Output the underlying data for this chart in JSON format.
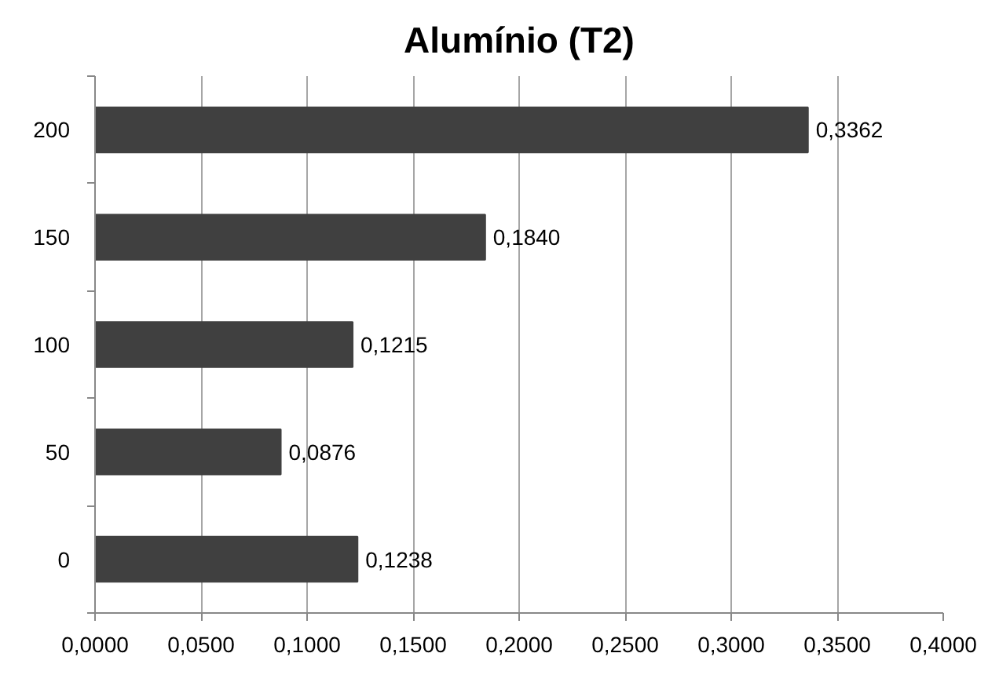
{
  "chart_data": {
    "type": "bar",
    "orientation": "horizontal",
    "title": "Alumínio (T2)",
    "categories": [
      "200",
      "150",
      "100",
      "50",
      "0"
    ],
    "values": [
      0.3362,
      0.184,
      0.1215,
      0.0876,
      0.1238
    ],
    "value_labels": [
      "0,3362",
      "0,1840",
      "0,1215",
      "0,0876",
      "0,1238"
    ],
    "color": "#404040",
    "xlim": [
      0,
      0.4
    ],
    "xticks": [
      {
        "value": 0,
        "label": "0,0000"
      },
      {
        "value": 0.05,
        "label": "0,0500"
      },
      {
        "value": 0.1,
        "label": "0,1000"
      },
      {
        "value": 0.15,
        "label": "0,1500"
      },
      {
        "value": 0.2,
        "label": "0,2000"
      },
      {
        "value": 0.25,
        "label": "0,2500"
      },
      {
        "value": 0.3,
        "label": "0,3000"
      },
      {
        "value": 0.35,
        "label": "0,3500"
      },
      {
        "value": 0.4,
        "label": "0,4000"
      }
    ],
    "grid": "x"
  }
}
